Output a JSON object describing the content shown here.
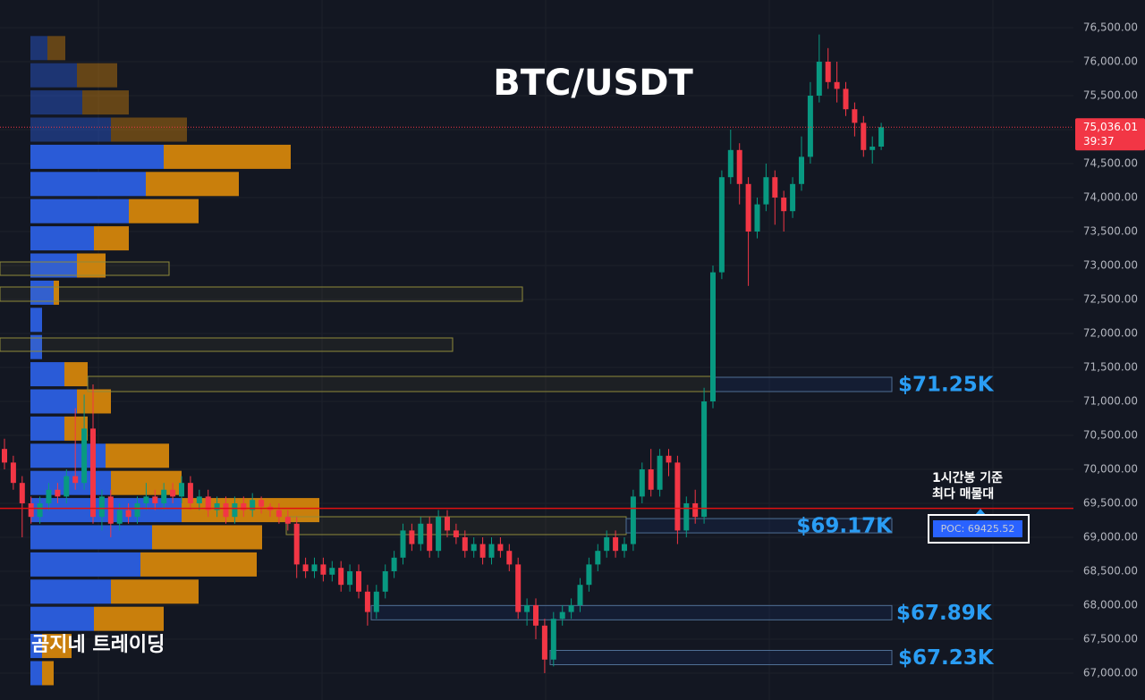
{
  "chart_data": {
    "type": "candlestick",
    "title": "BTC/USDT",
    "open": [
      70300,
      70100,
      69800,
      69500,
      69300,
      69500,
      69700,
      69600,
      69900,
      69800,
      70600,
      69300,
      69600,
      69200,
      69400,
      69300,
      69500,
      69600,
      69500,
      69700,
      69600,
      69800,
      69500,
      69600,
      69400,
      69500,
      69300,
      69500,
      69400,
      69550,
      69450,
      69400,
      69300,
      69200,
      68600,
      68500,
      68600,
      68450,
      68550,
      68300,
      68500,
      68200,
      67900,
      68200,
      68500,
      68700,
      69100,
      68900,
      69200,
      68800,
      69300,
      69100,
      69000,
      68800,
      68900,
      68700,
      68900,
      68800,
      68600,
      67900,
      68000,
      67700,
      67200,
      67800,
      67900,
      68000,
      68300,
      68600,
      68800,
      69000,
      68800,
      68900,
      69600,
      70000,
      69700,
      70200,
      70100,
      69100,
      69500,
      69300,
      71000,
      72900,
      74300,
      74700,
      74200,
      73500,
      73900,
      74300,
      74000,
      73800,
      74200,
      74600,
      75500,
      76000,
      75700,
      75600,
      75300,
      75100,
      74700,
      74750
    ],
    "high": [
      70450,
      70200,
      69900,
      69600,
      69600,
      69800,
      69800,
      70000,
      70900,
      71100,
      71250,
      69700,
      69700,
      69500,
      69500,
      69600,
      69800,
      69700,
      69800,
      69800,
      69900,
      69900,
      69700,
      69700,
      69600,
      69600,
      69600,
      69600,
      69650,
      69600,
      69500,
      69500,
      69400,
      69300,
      68700,
      68700,
      68700,
      68650,
      68650,
      68600,
      68600,
      68300,
      68300,
      68600,
      68800,
      69200,
      69200,
      69300,
      69300,
      69400,
      69400,
      69200,
      69100,
      69000,
      69000,
      69000,
      69000,
      68900,
      68700,
      68100,
      68100,
      67800,
      67900,
      68000,
      68100,
      68400,
      68700,
      68900,
      69100,
      69100,
      69000,
      69700,
      70100,
      70300,
      70300,
      70300,
      70200,
      69600,
      69700,
      71200,
      73000,
      74400,
      75000,
      74800,
      74300,
      74000,
      74500,
      74400,
      74100,
      74300,
      74900,
      75700,
      76400,
      76200,
      76000,
      75700,
      75400,
      75200,
      74900,
      75100
    ],
    "low": [
      70000,
      69700,
      69000,
      69200,
      69200,
      69400,
      69500,
      69500,
      69700,
      69700,
      69200,
      69100,
      69000,
      69100,
      69200,
      69200,
      69400,
      69400,
      69400,
      69500,
      69500,
      69400,
      69400,
      69300,
      69300,
      69200,
      69200,
      69300,
      69300,
      69350,
      69300,
      69200,
      69100,
      68400,
      68400,
      68400,
      68350,
      68350,
      68200,
      68200,
      68100,
      67700,
      67800,
      68100,
      68400,
      68600,
      68800,
      68800,
      68700,
      68700,
      69000,
      68900,
      68700,
      68700,
      68600,
      68600,
      68700,
      68500,
      67800,
      67700,
      67500,
      67000,
      67100,
      67700,
      67800,
      67900,
      68200,
      68500,
      68700,
      68700,
      68700,
      68800,
      69500,
      69600,
      69600,
      69900,
      68900,
      69000,
      69200,
      69200,
      70900,
      72800,
      74200,
      73900,
      72700,
      73400,
      73800,
      73600,
      73500,
      73700,
      74100,
      74500,
      75400,
      75600,
      75400,
      75200,
      74900,
      74600,
      74500,
      74700
    ],
    "close": [
      70100,
      69800,
      69500,
      69300,
      69500,
      69700,
      69600,
      69900,
      69800,
      70600,
      69300,
      69600,
      69200,
      69400,
      69300,
      69500,
      69600,
      69500,
      69700,
      69600,
      69800,
      69500,
      69600,
      69400,
      69500,
      69300,
      69500,
      69400,
      69550,
      69450,
      69400,
      69300,
      69200,
      68600,
      68500,
      68600,
      68450,
      68550,
      68300,
      68500,
      68200,
      67900,
      68200,
      68500,
      68700,
      69100,
      68900,
      69200,
      68800,
      69300,
      69100,
      69000,
      68800,
      68900,
      68700,
      68900,
      68800,
      68600,
      67900,
      68000,
      67700,
      67200,
      67800,
      67900,
      68000,
      68300,
      68600,
      68800,
      69000,
      68800,
      68900,
      69600,
      70000,
      69700,
      70200,
      70100,
      69100,
      69500,
      69300,
      71000,
      72900,
      74300,
      74700,
      74200,
      73500,
      73900,
      74300,
      74000,
      73800,
      74200,
      74600,
      75500,
      76000,
      75700,
      75600,
      75300,
      75100,
      74700,
      74750,
      75036.01
    ],
    "up_color": "#089981",
    "down_color": "#f23645",
    "ylim": [
      66605,
      76908
    ],
    "yticks": [
      {
        "value": 67000,
        "label": "67,000.00"
      },
      {
        "value": 67500,
        "label": "67,500.00"
      },
      {
        "value": 68000,
        "label": "68,000.00"
      },
      {
        "value": 68500,
        "label": "68,500.00"
      },
      {
        "value": 69000,
        "label": "69,000.00"
      },
      {
        "value": 69500,
        "label": "69,500.00"
      },
      {
        "value": 70000,
        "label": "70,000.00"
      },
      {
        "value": 70500,
        "label": "70,500.00"
      },
      {
        "value": 71000,
        "label": "71,000.00"
      },
      {
        "value": 71500,
        "label": "71,500.00"
      },
      {
        "value": 72000,
        "label": "72,000.00"
      },
      {
        "value": 72500,
        "label": "72,500.00"
      },
      {
        "value": 73000,
        "label": "73,000.00"
      },
      {
        "value": 73500,
        "label": "73,500.00"
      },
      {
        "value": 74000,
        "label": "74,000.00"
      },
      {
        "value": 74500,
        "label": "74,500.00"
      },
      {
        "value": 75000,
        "label": "75,000.00"
      },
      {
        "value": 75500,
        "label": "75,500.00"
      },
      {
        "value": 76000,
        "label": "76,000.00"
      },
      {
        "value": 76500,
        "label": "76,500.00"
      }
    ],
    "grid": true,
    "last_price": {
      "value": 75036.01,
      "label": "75,036.01",
      "countdown": "39:37",
      "color": "#f23645"
    },
    "volume_profile": {
      "prices": [
        76200,
        75800,
        75400,
        75000,
        74600,
        74200,
        73800,
        73400,
        73000,
        72600,
        72200,
        71800,
        71400,
        71000,
        70600,
        70200,
        69800,
        69400,
        69000,
        68600,
        68200,
        67800,
        67400,
        67000
      ],
      "buy": [
        19,
        52,
        58,
        90,
        149,
        129,
        110,
        71,
        52,
        26,
        13,
        13,
        38,
        52,
        38,
        84,
        90,
        169,
        136,
        123,
        90,
        71,
        13,
        13
      ],
      "sell": [
        20,
        45,
        52,
        85,
        142,
        104,
        78,
        39,
        32,
        6,
        0,
        0,
        26,
        38,
        26,
        71,
        79,
        154,
        123,
        130,
        98,
        78,
        33,
        13
      ],
      "buy_color": "#2a5bd7",
      "sell_color": "#c97f0c"
    },
    "levels": [
      {
        "label": "$71.25K",
        "value": 71250
      },
      {
        "label": "$69.17K",
        "value": 69170
      },
      {
        "label": "$67.89K",
        "value": 67890
      },
      {
        "label": "$67.23K",
        "value": 67230
      }
    ],
    "poc": {
      "value": 69425.52,
      "label": "POC: 69425.52",
      "note": [
        "1시간봉 기준",
        "최다 매물대"
      ]
    },
    "watermark": "곰지네 트레이딩"
  }
}
